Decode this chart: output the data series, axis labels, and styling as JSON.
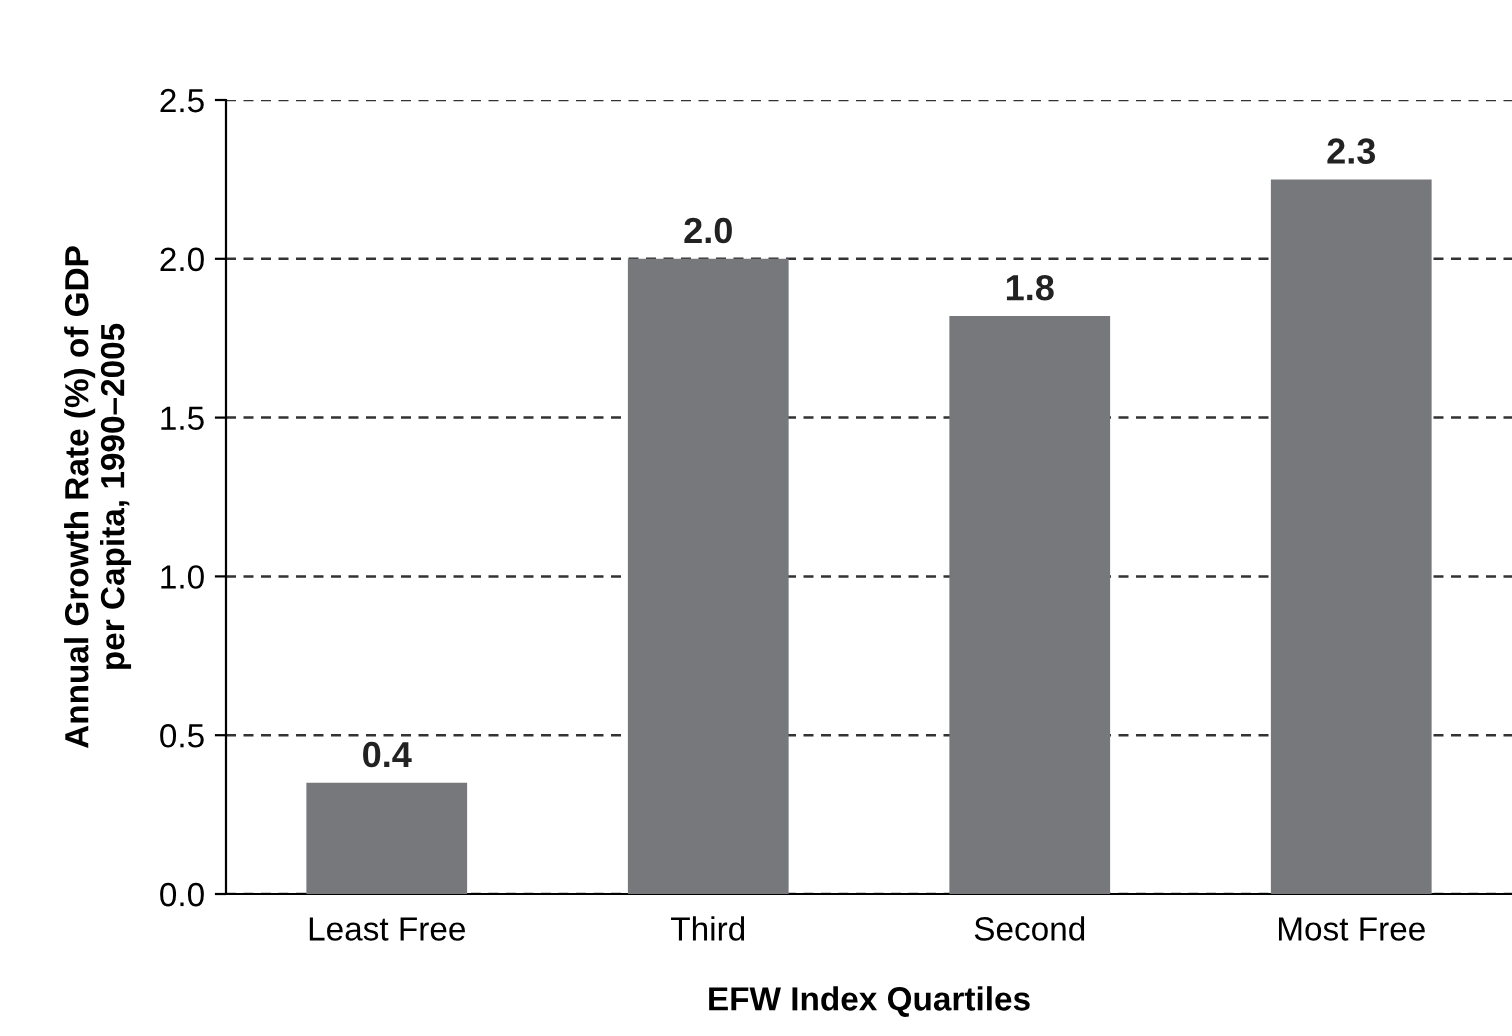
{
  "chart_data": {
    "type": "bar",
    "xlabel": "EFW Index Quartiles",
    "ylabel": "Annual Growth Rate (%) of GDP\nper Capita, 1990–2005",
    "categories": [
      "Least Free",
      "Third",
      "Second",
      "Most Free"
    ],
    "values": [
      0.35,
      2.0,
      1.82,
      2.25
    ],
    "value_labels": [
      "0.4",
      "2.0",
      "1.8",
      "2.3"
    ],
    "color": "#77787b",
    "ylim": [
      0,
      2.5
    ],
    "yticks": [
      {
        "value": 0,
        "label": "0.0"
      },
      {
        "value": 0.5,
        "label": "0.5"
      },
      {
        "value": 1.0,
        "label": "1.0"
      },
      {
        "value": 1.5,
        "label": "1.5"
      },
      {
        "value": 2.0,
        "label": "2.0"
      },
      {
        "value": 2.5,
        "label": "2.5"
      }
    ],
    "grid": "y"
  }
}
